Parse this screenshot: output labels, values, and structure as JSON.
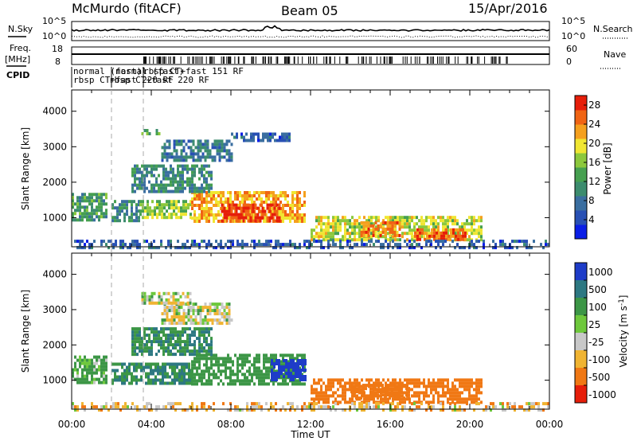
{
  "header": {
    "station": "McMurdo (fitACF)",
    "beam": "Beam 05",
    "date": "15/Apr/2016"
  },
  "top_panels": {
    "nsky": {
      "label": "N.Sky",
      "tick_hi": "10^5",
      "tick_lo": "10^0"
    },
    "nsearch": {
      "label": "N.Search",
      "tick_hi": "10^5",
      "tick_lo": "10^0"
    },
    "freq": {
      "label_line1": "Freq.",
      "label_line2": "[MHz]",
      "tick_hi": "18",
      "tick_lo": "8"
    },
    "nave": {
      "label": "Nave",
      "tick_hi": "60",
      "tick_lo": "0"
    },
    "cpid": {
      "label": "CPID",
      "line1": [
        "normal (fast)",
        "normal (fast)",
        "rbsp CT+fast 151 RF"
      ],
      "line2": [
        "rbsp CT+fast 220 RF",
        "rbsp CT+fast 220 RF"
      ]
    }
  },
  "chart_data": [
    {
      "type": "heatmap",
      "title": "Power",
      "xlabel": "",
      "ylabel": "Slant Range [km]",
      "x_ticks": [
        "00:00",
        "04:00",
        "08:00",
        "12:00",
        "16:00",
        "20:00",
        "00:00"
      ],
      "xlim_hours": [
        0,
        24
      ],
      "y_ticks": [
        1000,
        2000,
        3000,
        4000
      ],
      "ylim": [
        180,
        4600
      ],
      "colorbar": {
        "label": "Power [dB]",
        "ticks": [
          4,
          8,
          12,
          16,
          20,
          24,
          28
        ],
        "range": [
          0,
          30
        ],
        "colors": [
          "#0a1ee6",
          "#2850b4",
          "#3a6ea0",
          "#3c8c6e",
          "#46a050",
          "#8cc83c",
          "#f0e632",
          "#f5a01e",
          "#f06414",
          "#e61e0a"
        ]
      },
      "regions": [
        {
          "t": [
            0.0,
            1.8
          ],
          "r": [
            900,
            1700
          ],
          "v": 12
        },
        {
          "t": [
            2.0,
            3.4
          ],
          "r": [
            950,
            1500
          ],
          "v": 10
        },
        {
          "t": [
            3.4,
            6.0
          ],
          "r": [
            1000,
            1500
          ],
          "v": 16
        },
        {
          "t": [
            6.0,
            11.7
          ],
          "r": [
            900,
            1750
          ],
          "v": 22
        },
        {
          "t": [
            7.5,
            10.5
          ],
          "r": [
            950,
            1400
          ],
          "v": 28
        },
        {
          "t": [
            3.0,
            7.0
          ],
          "r": [
            1700,
            2500
          ],
          "v": 10
        },
        {
          "t": [
            4.5,
            8.0
          ],
          "r": [
            2600,
            3200
          ],
          "v": 8
        },
        {
          "t": [
            8.0,
            11.0
          ],
          "r": [
            3200,
            3400
          ],
          "v": 6
        },
        {
          "t": [
            3.5,
            4.4
          ],
          "r": [
            3350,
            3500
          ],
          "v": 14
        },
        {
          "t": [
            12.0,
            20.6
          ],
          "r": [
            400,
            1050
          ],
          "v": 18
        },
        {
          "t": [
            17.2,
            19.8
          ],
          "r": [
            400,
            700
          ],
          "v": 26
        },
        {
          "t": [
            14.5,
            16.5
          ],
          "r": [
            500,
            900
          ],
          "v": 24
        },
        {
          "t": [
            0.0,
            24.0
          ],
          "r": [
            180,
            380
          ],
          "v": 6
        }
      ]
    },
    {
      "type": "heatmap",
      "title": "Velocity",
      "xlabel": "Time UT",
      "ylabel": "Slant Range [km]",
      "x_ticks": [
        "00:00",
        "04:00",
        "08:00",
        "12:00",
        "16:00",
        "20:00",
        "00:00"
      ],
      "xlim_hours": [
        0,
        24
      ],
      "y_ticks": [
        1000,
        2000,
        3000,
        4000
      ],
      "ylim": [
        180,
        4600
      ],
      "colorbar": {
        "label": "Velocity [m s^-1]",
        "ticks": [
          "1000",
          "500",
          "100",
          "25",
          "-25",
          "-100",
          "-500",
          "-1000"
        ],
        "colors": [
          "#1e3cc8",
          "#2d7882",
          "#3c9646",
          "#6ec83c",
          "#c8c8c8",
          "#f0b432",
          "#f07814",
          "#e61e0a"
        ]
      },
      "regions": [
        {
          "t": [
            0.0,
            1.8
          ],
          "r": [
            900,
            1700
          ],
          "v": 100
        },
        {
          "t": [
            2.0,
            6.0
          ],
          "r": [
            950,
            1500
          ],
          "v": 300
        },
        {
          "t": [
            6.0,
            11.7
          ],
          "r": [
            900,
            1750
          ],
          "v": 150
        },
        {
          "t": [
            10.0,
            11.7
          ],
          "r": [
            1000,
            1600
          ],
          "v": 900
        },
        {
          "t": [
            3.0,
            7.0
          ],
          "r": [
            1700,
            2500
          ],
          "v": 300
        },
        {
          "t": [
            4.5,
            8.0
          ],
          "r": [
            2600,
            3200
          ],
          "v": 0
        },
        {
          "t": [
            3.5,
            6.0
          ],
          "r": [
            3200,
            3500
          ],
          "v": 0
        },
        {
          "t": [
            12.0,
            20.6
          ],
          "r": [
            400,
            1050
          ],
          "v": -200
        },
        {
          "t": [
            14.0,
            17.0
          ],
          "r": [
            500,
            900
          ],
          "v": -400
        },
        {
          "t": [
            0.0,
            24.0
          ],
          "r": [
            180,
            380
          ],
          "v": -50
        }
      ]
    }
  ],
  "dashed_markers_hours": [
    2.0,
    3.6
  ]
}
